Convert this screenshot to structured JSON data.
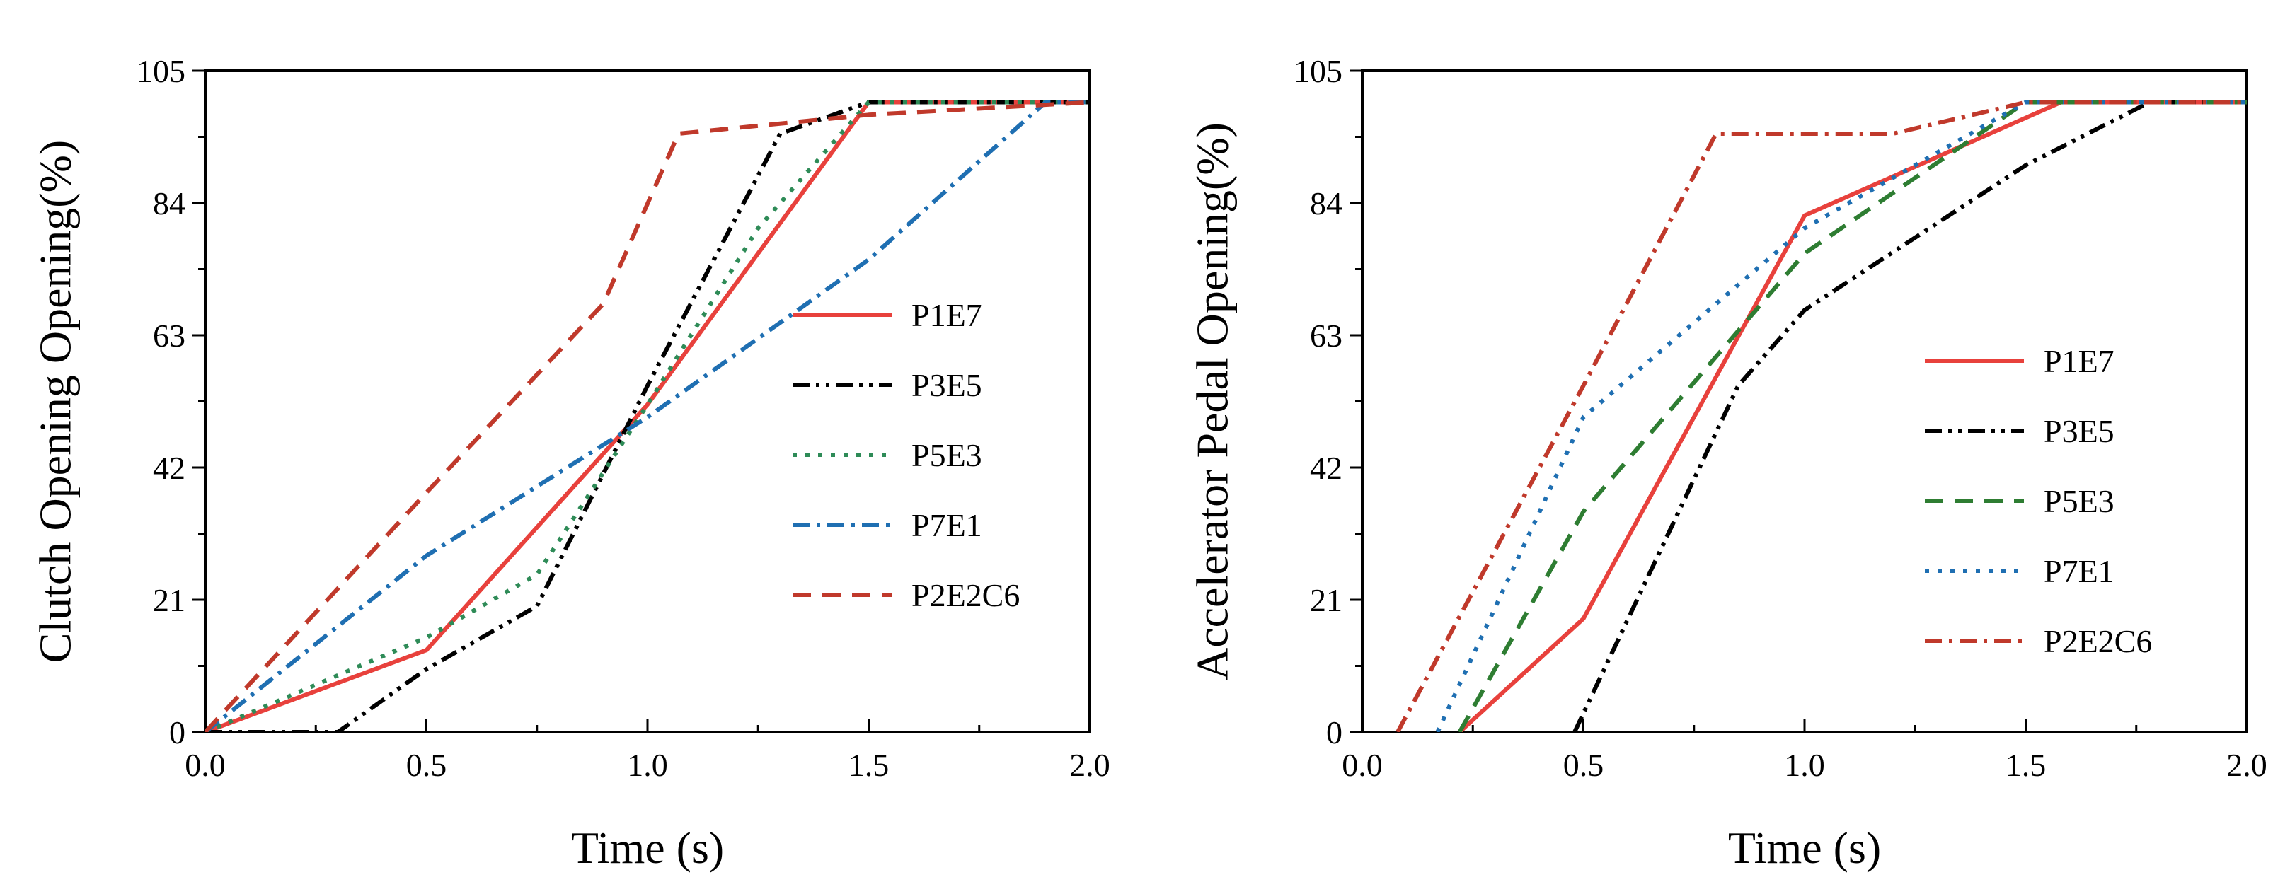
{
  "chart_data": [
    {
      "type": "line",
      "title": "",
      "xlabel": "Time (s)",
      "ylabel": "Clutch Opening Opening(%)",
      "xlim": [
        0,
        2.0
      ],
      "ylim": [
        0,
        105
      ],
      "xticks": [
        "0.0",
        "0.5",
        "1.0",
        "1.5",
        "2.0"
      ],
      "yticks": [
        "0",
        "21",
        "42",
        "63",
        "84",
        "105"
      ],
      "xtick_values": [
        0,
        0.5,
        1.0,
        1.5,
        2.0
      ],
      "ytick_values": [
        0,
        21,
        42,
        63,
        84,
        105
      ],
      "grid": false,
      "legend_position": "center-right",
      "series": [
        {
          "name": "P1E7",
          "color": "#e8413c",
          "dash": "solid",
          "x": [
            0,
            0.5,
            1.0,
            1.5,
            2.0
          ],
          "y": [
            0,
            13,
            52,
            100,
            100
          ]
        },
        {
          "name": "P3E5",
          "color": "#000000",
          "dash": "dashdotdot",
          "x": [
            0,
            0.3,
            0.5,
            0.75,
            1.0,
            1.3,
            1.5,
            2.0
          ],
          "y": [
            0,
            0,
            10,
            20,
            55,
            95,
            100,
            100
          ]
        },
        {
          "name": "P5E3",
          "color": "#2e8b57",
          "dash": "dot",
          "x": [
            0,
            0.5,
            0.75,
            1.0,
            1.25,
            1.5,
            2.0
          ],
          "y": [
            0,
            15,
            25,
            52,
            80,
            100,
            100
          ]
        },
        {
          "name": "P7E1",
          "color": "#1f6fb2",
          "dash": "dashdot",
          "x": [
            0,
            0.5,
            1.0,
            1.5,
            1.9,
            2.0
          ],
          "y": [
            0,
            28,
            50,
            75,
            100,
            100
          ]
        },
        {
          "name": "P2E2C6",
          "color": "#c0392b",
          "dash": "dash",
          "x": [
            0,
            0.5,
            0.9,
            1.07,
            1.5,
            2.0
          ],
          "y": [
            0,
            38,
            68,
            95,
            98,
            100
          ]
        }
      ]
    },
    {
      "type": "line",
      "title": "",
      "xlabel": "Time (s)",
      "ylabel": "Accelerator Pedal Opening(%)",
      "xlim": [
        0,
        2.0
      ],
      "ylim": [
        0,
        105
      ],
      "xticks": [
        "0.0",
        "0.5",
        "1.0",
        "1.5",
        "2.0"
      ],
      "yticks": [
        "0",
        "21",
        "42",
        "63",
        "84",
        "105"
      ],
      "xtick_values": [
        0,
        0.5,
        1.0,
        1.5,
        2.0
      ],
      "ytick_values": [
        0,
        21,
        42,
        63,
        84,
        105
      ],
      "grid": false,
      "legend_position": "center-right",
      "series": [
        {
          "name": "P1E7",
          "color": "#e8413c",
          "dash": "solid",
          "x": [
            0.22,
            0.5,
            1.0,
            1.58,
            2.0
          ],
          "y": [
            0,
            18,
            82,
            100,
            100
          ]
        },
        {
          "name": "P3E5",
          "color": "#000000",
          "dash": "dashdotdot",
          "x": [
            0.48,
            0.85,
            1.0,
            1.5,
            1.78,
            2.0
          ],
          "y": [
            0,
            55,
            67,
            90,
            100,
            100
          ]
        },
        {
          "name": "P5E3",
          "color": "#2e7d32",
          "dash": "dash",
          "x": [
            0.22,
            0.5,
            1.0,
            1.5,
            2.0
          ],
          "y": [
            0,
            35,
            76,
            100,
            100
          ]
        },
        {
          "name": "P7E1",
          "color": "#1f6fb2",
          "dash": "dot",
          "x": [
            0.17,
            0.5,
            1.0,
            1.5,
            2.0
          ],
          "y": [
            0,
            50,
            80,
            100,
            100
          ]
        },
        {
          "name": "P2E2C6",
          "color": "#c0392b",
          "dash": "dashdot",
          "x": [
            0.08,
            0.5,
            0.8,
            1.2,
            1.5,
            2.0
          ],
          "y": [
            0,
            55,
            95,
            95,
            100,
            100
          ]
        }
      ]
    }
  ]
}
